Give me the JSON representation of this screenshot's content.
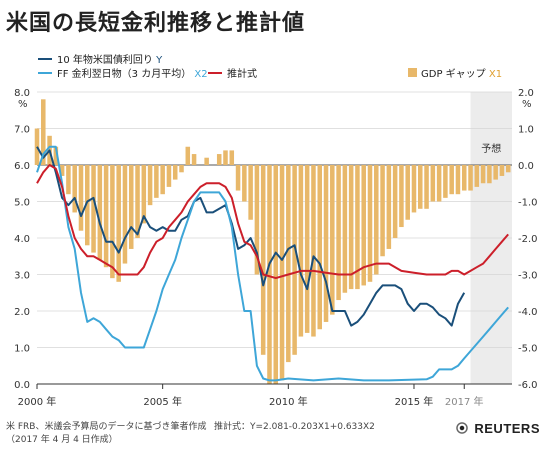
{
  "title": "米国の長短金利推移と推計値",
  "footer": {
    "source": "米 FRB、米議会予算局のデータに基づき筆者作成",
    "date": "（2017 年 4 月 4 日作成）",
    "formula": "推計式：Y=2.081-0.203X1+0.633X2",
    "brand": "REUTERS"
  },
  "chart_data": {
    "type": "line",
    "x_tick_labels": [
      "2000 年",
      "2005 年",
      "2010 年",
      "2015 年",
      "2017 年"
    ],
    "x_ticks": [
      2000,
      2005,
      2010,
      2015,
      2017
    ],
    "xlim": [
      2000,
      2018.9
    ],
    "forecast_start": 2017.25,
    "forecast_label": "予想",
    "ylabel_left": "%",
    "ylabel_right": "%",
    "ylim_left": [
      0,
      8
    ],
    "ylim_right": [
      -6,
      2
    ],
    "y_left_ticks": [
      "0.0",
      "1.0",
      "2.0",
      "3.0",
      "4.0",
      "5.0",
      "6.0",
      "7.0",
      "8.0"
    ],
    "y_right_ticks": [
      "-6.0",
      "-5.0",
      "-4.0",
      "-3.0",
      "-2.0",
      "-1.0",
      "0.0",
      "1.0",
      "2.0"
    ],
    "grid": "horizontal",
    "legend": [
      {
        "label": "10 年物米国債利回り",
        "suffix": "Y",
        "color": "#1a4f7a"
      },
      {
        "label": "FF 金利翌日物（3 カ月平均）",
        "suffix": "X2",
        "color": "#3ea6d8"
      },
      {
        "label": "推計式",
        "suffix": "",
        "color": "#cc1f2a"
      },
      {
        "label": "GDP ギャップ",
        "suffix": "X1",
        "color": "#e8b86a"
      }
    ],
    "series": [
      {
        "name": "10 年物米国債利回り",
        "axis": "left",
        "color": "#1a4f7a",
        "x": [
          2000.0,
          2000.25,
          2000.5,
          2000.75,
          2001.0,
          2001.25,
          2001.5,
          2001.75,
          2002.0,
          2002.25,
          2002.5,
          2002.75,
          2003.0,
          2003.25,
          2003.5,
          2003.75,
          2004.0,
          2004.25,
          2004.5,
          2004.75,
          2005.0,
          2005.25,
          2005.5,
          2005.75,
          2006.0,
          2006.25,
          2006.5,
          2006.75,
          2007.0,
          2007.25,
          2007.5,
          2007.75,
          2008.0,
          2008.25,
          2008.5,
          2008.75,
          2009.0,
          2009.25,
          2009.5,
          2009.75,
          2010.0,
          2010.25,
          2010.5,
          2010.75,
          2011.0,
          2011.25,
          2011.5,
          2011.75,
          2012.0,
          2012.25,
          2012.5,
          2012.75,
          2013.0,
          2013.25,
          2013.5,
          2013.75,
          2014.0,
          2014.25,
          2014.5,
          2014.75,
          2015.0,
          2015.25,
          2015.5,
          2015.75,
          2016.0,
          2016.25,
          2016.5,
          2016.75,
          2017.0
        ],
        "y": [
          6.5,
          6.2,
          6.4,
          5.8,
          5.1,
          4.9,
          5.1,
          4.6,
          5.0,
          5.1,
          4.4,
          3.9,
          3.9,
          3.6,
          4.0,
          4.3,
          4.1,
          4.6,
          4.3,
          4.2,
          4.3,
          4.2,
          4.2,
          4.5,
          4.6,
          5.0,
          5.1,
          4.7,
          4.7,
          4.8,
          4.9,
          4.4,
          3.7,
          3.8,
          4.0,
          3.6,
          2.7,
          3.3,
          3.6,
          3.4,
          3.7,
          3.8,
          3.0,
          2.6,
          3.5,
          3.3,
          2.8,
          2.0,
          2.0,
          2.0,
          1.6,
          1.7,
          1.9,
          2.2,
          2.5,
          2.7,
          2.7,
          2.7,
          2.6,
          2.2,
          2.0,
          2.2,
          2.2,
          2.1,
          1.9,
          1.8,
          1.6,
          2.2,
          2.5
        ]
      },
      {
        "name": "FF 金利翌日物（3 カ月平均）",
        "axis": "left",
        "color": "#3ea6d8",
        "x": [
          2000.0,
          2000.25,
          2000.5,
          2000.75,
          2001.0,
          2001.25,
          2001.5,
          2001.75,
          2002.0,
          2002.25,
          2002.5,
          2002.75,
          2003.0,
          2003.25,
          2003.5,
          2003.75,
          2004.0,
          2004.25,
          2004.5,
          2004.75,
          2005.0,
          2005.25,
          2005.5,
          2005.75,
          2006.0,
          2006.25,
          2006.5,
          2006.75,
          2007.0,
          2007.25,
          2007.5,
          2007.75,
          2008.0,
          2008.25,
          2008.5,
          2008.75,
          2009.0,
          2009.25,
          2009.5,
          2010.0,
          2011.0,
          2012.0,
          2013.0,
          2014.0,
          2015.0,
          2015.5,
          2015.75,
          2016.0,
          2016.5,
          2016.75,
          2017.0,
          2017.25,
          2017.5,
          2017.75,
          2018.0,
          2018.25,
          2018.5,
          2018.75
        ],
        "y": [
          5.8,
          6.3,
          6.5,
          6.5,
          5.5,
          4.3,
          3.7,
          2.5,
          1.7,
          1.8,
          1.7,
          1.5,
          1.3,
          1.2,
          1.0,
          1.0,
          1.0,
          1.0,
          1.5,
          2.0,
          2.6,
          3.0,
          3.4,
          4.0,
          4.5,
          5.0,
          5.25,
          5.25,
          5.25,
          5.25,
          5.0,
          4.3,
          3.0,
          2.0,
          2.0,
          0.5,
          0.15,
          0.1,
          0.1,
          0.15,
          0.1,
          0.15,
          0.1,
          0.1,
          0.12,
          0.13,
          0.2,
          0.4,
          0.4,
          0.5,
          0.7,
          0.9,
          1.1,
          1.3,
          1.5,
          1.7,
          1.9,
          2.1
        ]
      },
      {
        "name": "推計式",
        "axis": "left",
        "color": "#cc1f2a",
        "x": [
          2000.0,
          2000.25,
          2000.5,
          2000.75,
          2001.0,
          2001.25,
          2001.5,
          2001.75,
          2002.0,
          2002.25,
          2002.5,
          2002.75,
          2003.0,
          2003.25,
          2003.5,
          2003.75,
          2004.0,
          2004.25,
          2004.5,
          2004.75,
          2005.0,
          2005.25,
          2005.5,
          2005.75,
          2006.0,
          2006.25,
          2006.5,
          2006.75,
          2007.0,
          2007.25,
          2007.5,
          2007.75,
          2008.0,
          2008.25,
          2008.5,
          2008.75,
          2009.0,
          2009.5,
          2010.0,
          2010.5,
          2011.0,
          2011.5,
          2012.0,
          2012.5,
          2013.0,
          2013.5,
          2014.0,
          2014.5,
          2015.0,
          2015.5,
          2016.0,
          2016.25,
          2016.5,
          2016.75,
          2017.0,
          2017.25,
          2017.5,
          2017.75,
          2018.0,
          2018.25,
          2018.5,
          2018.75
        ],
        "y": [
          5.5,
          5.8,
          6.0,
          5.9,
          5.4,
          4.6,
          4.0,
          3.7,
          3.5,
          3.5,
          3.4,
          3.3,
          3.2,
          3.0,
          3.0,
          3.0,
          3.0,
          3.2,
          3.6,
          3.9,
          4.0,
          4.3,
          4.5,
          4.7,
          5.0,
          5.2,
          5.4,
          5.5,
          5.5,
          5.5,
          5.4,
          5.1,
          4.4,
          3.9,
          3.8,
          3.5,
          3.0,
          2.9,
          3.0,
          3.1,
          3.1,
          3.05,
          3.0,
          3.0,
          3.2,
          3.3,
          3.3,
          3.1,
          3.05,
          3.0,
          3.0,
          3.0,
          3.1,
          3.1,
          3.0,
          3.1,
          3.2,
          3.3,
          3.5,
          3.7,
          3.9,
          4.1
        ]
      },
      {
        "name": "GDP ギャップ",
        "axis": "right",
        "type": "bar",
        "color": "#e8b86a",
        "x": [
          2000.0,
          2000.25,
          2000.5,
          2000.75,
          2001.0,
          2001.25,
          2001.5,
          2001.75,
          2002.0,
          2002.25,
          2002.5,
          2002.75,
          2003.0,
          2003.25,
          2003.5,
          2003.75,
          2004.0,
          2004.25,
          2004.5,
          2004.75,
          2005.0,
          2005.25,
          2005.5,
          2005.75,
          2006.0,
          2006.25,
          2006.5,
          2006.75,
          2007.0,
          2007.25,
          2007.5,
          2007.75,
          2008.0,
          2008.25,
          2008.5,
          2008.75,
          2009.0,
          2009.25,
          2009.5,
          2009.75,
          2010.0,
          2010.25,
          2010.5,
          2010.75,
          2011.0,
          2011.25,
          2011.5,
          2011.75,
          2012.0,
          2012.25,
          2012.5,
          2012.75,
          2013.0,
          2013.25,
          2013.5,
          2013.75,
          2014.0,
          2014.25,
          2014.5,
          2014.75,
          2015.0,
          2015.25,
          2015.5,
          2015.75,
          2016.0,
          2016.25,
          2016.5,
          2016.75,
          2017.0,
          2017.25,
          2017.5,
          2017.75,
          2018.0,
          2018.25,
          2018.5,
          2018.75
        ],
        "y": [
          1.0,
          1.8,
          0.8,
          0.5,
          -0.3,
          -0.8,
          -1.3,
          -1.8,
          -2.2,
          -2.4,
          -2.6,
          -2.8,
          -3.1,
          -3.2,
          -2.7,
          -2.3,
          -2.0,
          -1.6,
          -1.1,
          -0.9,
          -0.8,
          -0.6,
          -0.4,
          -0.2,
          0.5,
          0.3,
          0.0,
          0.2,
          0.0,
          0.3,
          0.4,
          0.4,
          -0.7,
          -1.0,
          -1.5,
          -3.0,
          -5.2,
          -6.0,
          -6.0,
          -5.9,
          -5.4,
          -5.2,
          -4.7,
          -4.6,
          -4.7,
          -4.5,
          -4.3,
          -4.1,
          -3.7,
          -3.5,
          -3.4,
          -3.4,
          -3.3,
          -3.2,
          -3.0,
          -2.5,
          -2.3,
          -2.0,
          -1.7,
          -1.5,
          -1.3,
          -1.2,
          -1.2,
          -1.0,
          -1.0,
          -0.9,
          -0.8,
          -0.8,
          -0.7,
          -0.7,
          -0.6,
          -0.5,
          -0.5,
          -0.4,
          -0.3,
          -0.2
        ]
      }
    ]
  }
}
